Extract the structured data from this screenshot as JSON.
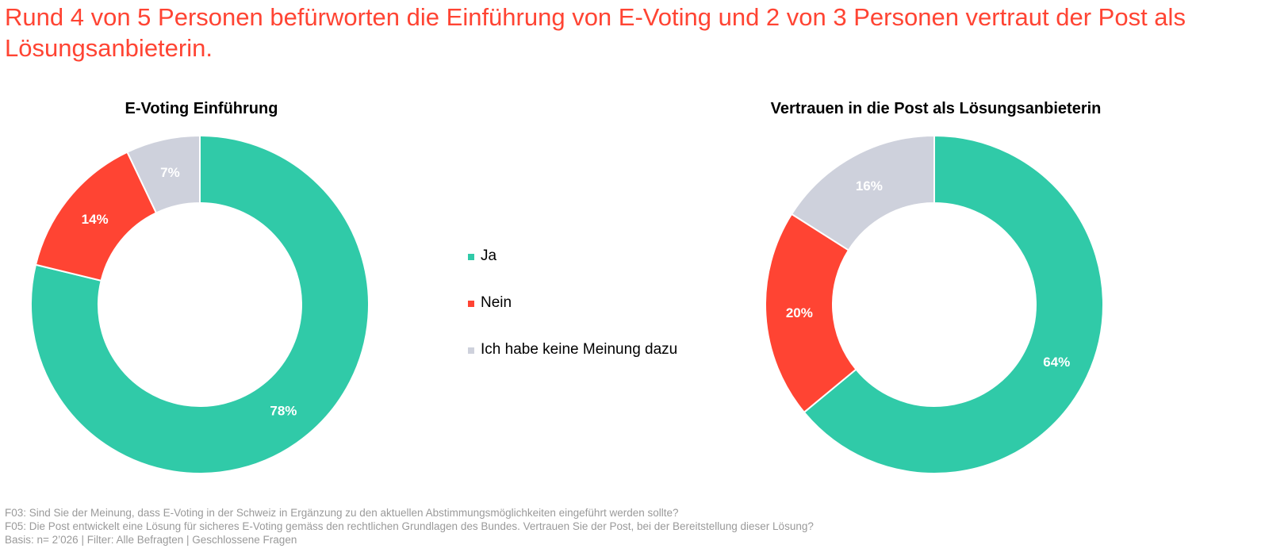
{
  "headline": "Rund 4 von 5 Personen befürworten die Einführung von E-Voting und 2 von 3 Personen vertraut der Post als Lösungsanbieterin.",
  "legend": [
    {
      "label": "Ja",
      "color": "#30CAA8"
    },
    {
      "label": "Nein",
      "color": "#FF4433"
    },
    {
      "label": "Ich habe keine Meinung dazu",
      "color": "#CED1DC"
    }
  ],
  "chart_data": [
    {
      "type": "pie",
      "title": "E-Voting Einführung",
      "categories": [
        "Ja",
        "Nein",
        "Ich habe keine Meinung dazu"
      ],
      "values": [
        78,
        14,
        7
      ],
      "labels": [
        "78%",
        "14%",
        "7%"
      ],
      "colors": [
        "#30CAA8",
        "#FF4433",
        "#CED1DC"
      ]
    },
    {
      "type": "pie",
      "title": "Vertrauen in die Post als Lösungsanbieterin",
      "categories": [
        "Ja",
        "Nein",
        "Ich habe keine Meinung dazu"
      ],
      "values": [
        64,
        20,
        16
      ],
      "labels": [
        "64%",
        "20%",
        "16%"
      ],
      "colors": [
        "#30CAA8",
        "#FF4433",
        "#CED1DC"
      ]
    }
  ],
  "footnotes": [
    "F03: Sind Sie der Meinung, dass E-Voting in der Schweiz in Ergänzung zu den aktuellen Abstimmungsmöglichkeiten eingeführt werden sollte?",
    "F05: Die Post entwickelt eine Lösung für sicheres E-Voting gemäss den rechtlichen Grundlagen des Bundes. Vertrauen Sie der Post, bei der Bereitstellung dieser Lösung?",
    "Basis: n= 2’026 | Filter: Alle Befragten | Geschlossene Fragen"
  ]
}
